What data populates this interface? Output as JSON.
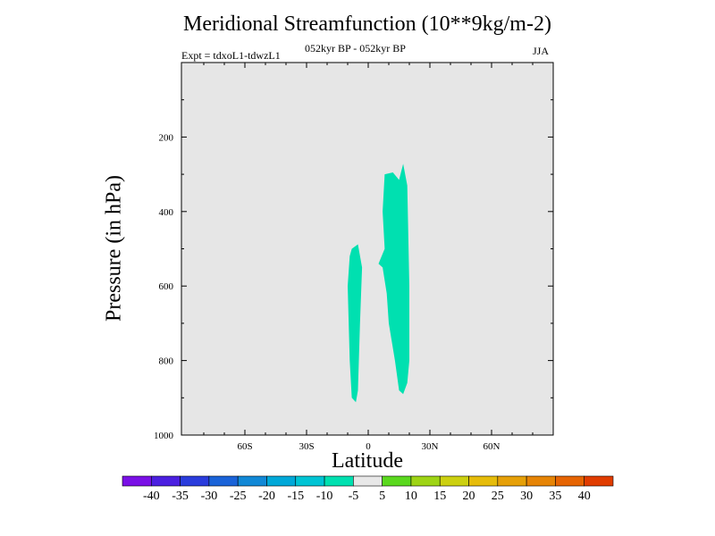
{
  "chart_data": {
    "type": "contour",
    "title": "Meridional Streamfunction (10**9kg/m-2)",
    "subtitle_left": "Expt = tdxoL1-tdwzL1",
    "subtitle_center": "052kyr BP - 052kyr BP",
    "subtitle_right": "JJA",
    "xlabel": "Latitude",
    "ylabel": "Pressure (in hPa)",
    "xlim": [
      -90,
      90
    ],
    "ylim": [
      0,
      1000
    ],
    "y_inverted": true,
    "x_ticks": [
      {
        "value": -60,
        "label": "60S"
      },
      {
        "value": -30,
        "label": "30S"
      },
      {
        "value": 0,
        "label": "0"
      },
      {
        "value": 30,
        "label": "30N"
      },
      {
        "value": 60,
        "label": "60N"
      }
    ],
    "y_ticks": [
      {
        "value": 200,
        "label": "200"
      },
      {
        "value": 400,
        "label": "400"
      },
      {
        "value": 600,
        "label": "600"
      },
      {
        "value": 800,
        "label": "800"
      },
      {
        "value": 1000,
        "label": "1000"
      }
    ],
    "plot_background": "#e6e6e6",
    "regions": [
      {
        "level": "-10 to -5",
        "color": "#00e0b0",
        "polygon": [
          [
            -8,
            500
          ],
          [
            -5,
            488
          ],
          [
            -3,
            550
          ],
          [
            -4,
            700
          ],
          [
            -5,
            880
          ],
          [
            -6,
            912
          ],
          [
            -8,
            900
          ],
          [
            -9,
            800
          ],
          [
            -10,
            600
          ],
          [
            -9,
            520
          ]
        ]
      },
      {
        "level": "-10 to -5",
        "color": "#00e0b0",
        "polygon": [
          [
            8,
            300
          ],
          [
            12,
            295
          ],
          [
            15,
            315
          ],
          [
            17,
            272
          ],
          [
            19,
            330
          ],
          [
            20,
            600
          ],
          [
            20,
            800
          ],
          [
            19,
            860
          ],
          [
            17,
            890
          ],
          [
            15,
            880
          ],
          [
            13,
            800
          ],
          [
            10,
            700
          ],
          [
            9,
            620
          ],
          [
            7,
            550
          ],
          [
            5,
            540
          ],
          [
            8,
            500
          ],
          [
            7,
            400
          ]
        ]
      }
    ],
    "colorbar": {
      "levels": [
        "-40",
        "-35",
        "-30",
        "-25",
        "-20",
        "-15",
        "-10",
        "-5",
        "5",
        "10",
        "15",
        "20",
        "25",
        "30",
        "35",
        "40"
      ],
      "colors": [
        "#7a10e6",
        "#4b1fe0",
        "#2a3cdc",
        "#1a63d8",
        "#1188d6",
        "#00a8d8",
        "#00c4d4",
        "#00e0b0",
        "#e8e8e8",
        "#5ad81e",
        "#9ed415",
        "#ccd010",
        "#e6bc0a",
        "#e6a008",
        "#e68405",
        "#e66402",
        "#e03c00"
      ]
    }
  }
}
